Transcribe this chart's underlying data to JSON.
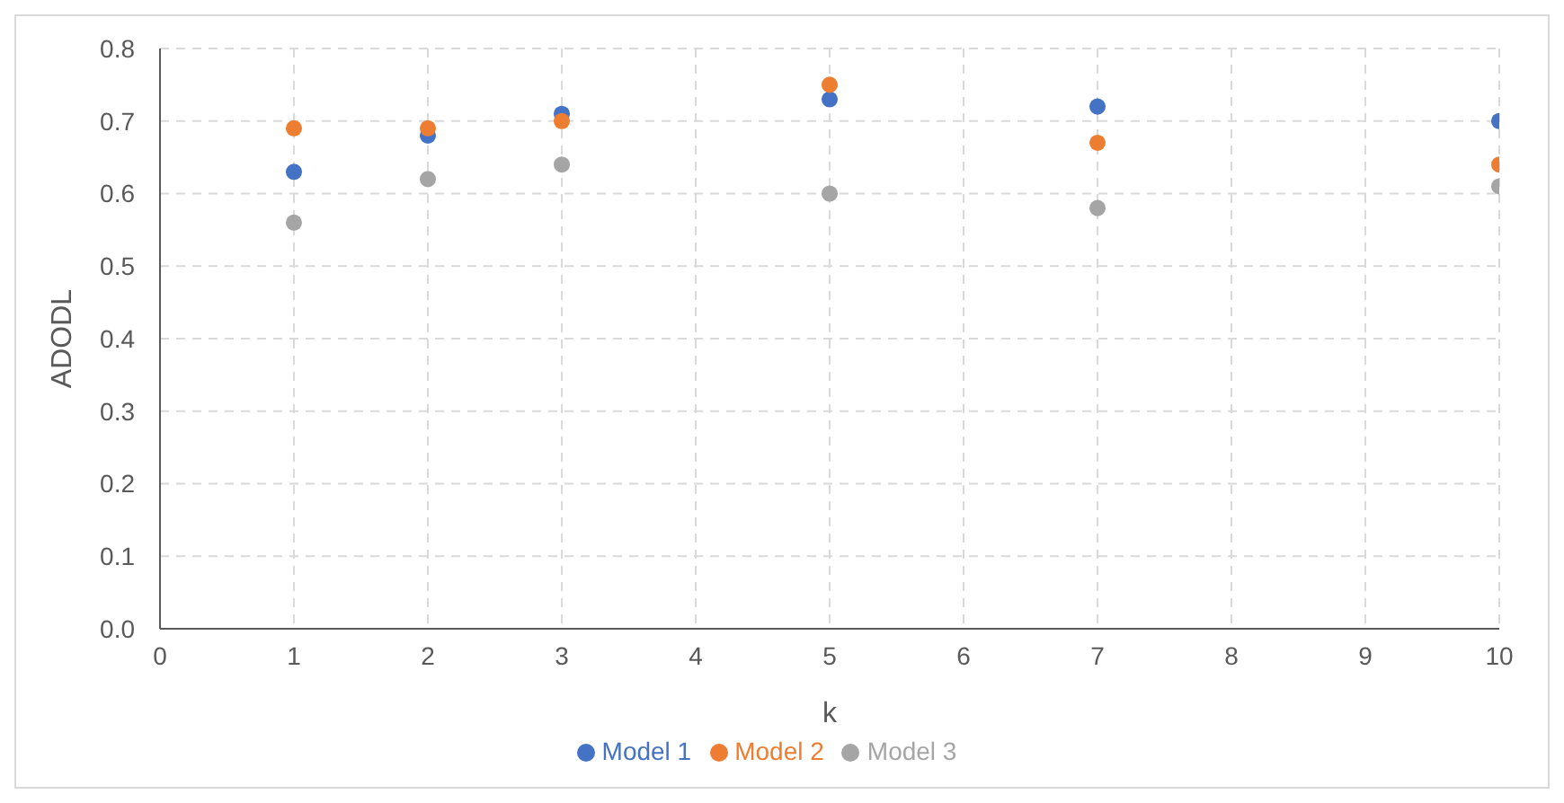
{
  "chart_data": {
    "type": "scatter",
    "xlabel": "k",
    "ylabel": "ADODL",
    "x": [
      1,
      2,
      3,
      5,
      7,
      10
    ],
    "series": [
      {
        "name": "Model 1",
        "color": "#4472c4",
        "values": [
          0.63,
          0.68,
          0.71,
          0.73,
          0.72,
          0.7
        ]
      },
      {
        "name": "Model 2",
        "color": "#ed7d31",
        "values": [
          0.69,
          0.69,
          0.7,
          0.75,
          0.67,
          0.64
        ]
      },
      {
        "name": "Model 3",
        "color": "#a5a5a5",
        "values": [
          0.56,
          0.62,
          0.64,
          0.6,
          0.58,
          0.61
        ]
      }
    ],
    "xlim": [
      0,
      10
    ],
    "xticks": [
      0,
      1,
      2,
      3,
      4,
      5,
      6,
      7,
      8,
      9,
      10
    ],
    "ylim": [
      0,
      0.8
    ],
    "yticks": [
      {
        "value": 0,
        "label": "0.0"
      },
      {
        "value": 0.1,
        "label": "0.1"
      },
      {
        "value": 0.2,
        "label": "0.2"
      },
      {
        "value": 0.3,
        "label": "0.3"
      },
      {
        "value": 0.4,
        "label": "0.4"
      },
      {
        "value": 0.5,
        "label": "0.5"
      },
      {
        "value": 0.6,
        "label": "0.6"
      },
      {
        "value": 0.7,
        "label": "0.7"
      },
      {
        "value": 0.8,
        "label": "0.8"
      }
    ],
    "grid": true,
    "legend": "bottom",
    "marker": "circle"
  }
}
